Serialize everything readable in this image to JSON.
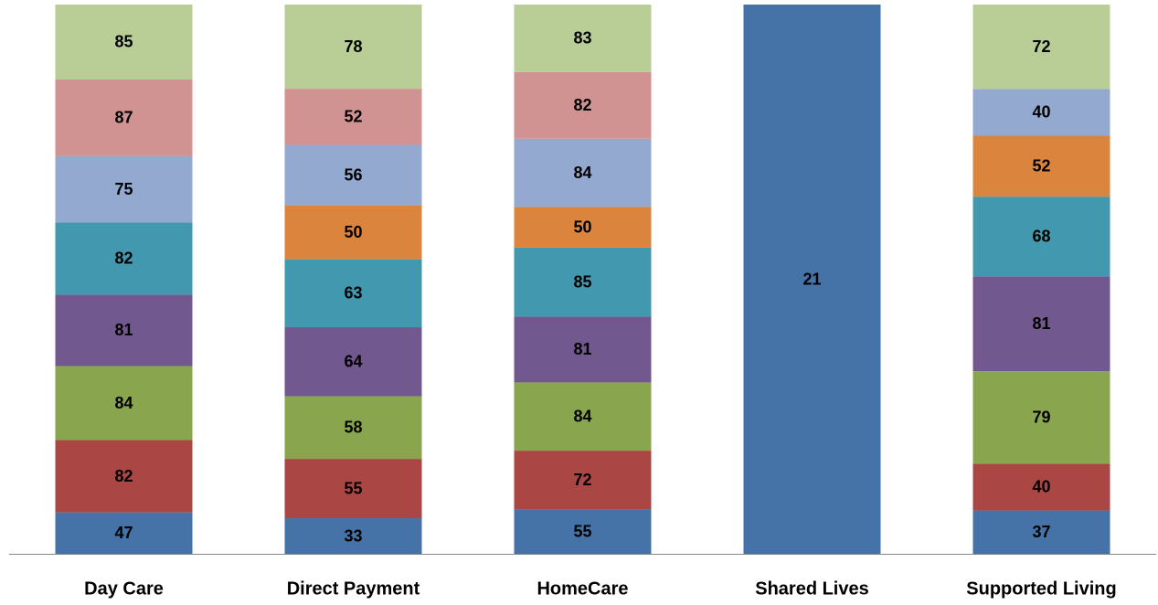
{
  "chart_data": {
    "type": "bar",
    "stacking": "percent",
    "categories": [
      "Day Care",
      "Direct Payment",
      "HomeCare",
      "Shared Lives",
      "Supported Living"
    ],
    "series": [
      {
        "color": "#4572a7",
        "values": [
          47,
          33,
          55,
          21,
          37
        ]
      },
      {
        "color": "#aa4643",
        "values": [
          82,
          55,
          72,
          null,
          40
        ]
      },
      {
        "color": "#89a54e",
        "values": [
          84,
          58,
          84,
          null,
          79
        ]
      },
      {
        "color": "#71588f",
        "values": [
          81,
          64,
          81,
          null,
          81
        ]
      },
      {
        "color": "#4198af",
        "values": [
          82,
          63,
          85,
          null,
          68
        ]
      },
      {
        "color": "#db843d",
        "values": [
          null,
          50,
          50,
          null,
          52
        ]
      },
      {
        "color": "#93a9cf",
        "values": [
          75,
          56,
          84,
          null,
          40
        ]
      },
      {
        "color": "#d19392",
        "values": [
          87,
          52,
          82,
          null,
          null
        ]
      },
      {
        "color": "#b9cd96",
        "values": [
          85,
          78,
          83,
          null,
          72
        ]
      }
    ]
  }
}
